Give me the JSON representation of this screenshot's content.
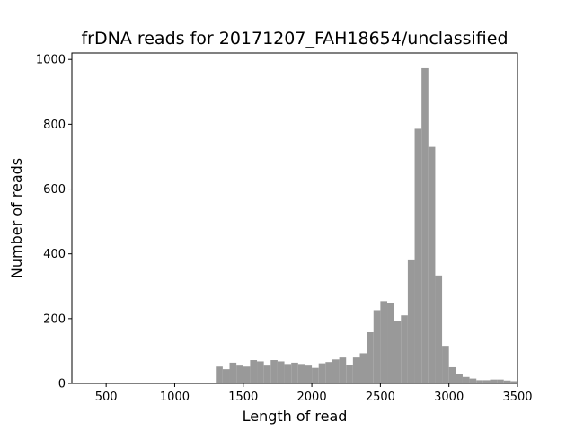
{
  "colors": {
    "bar": "#999999",
    "axis": "#000000",
    "background": "#ffffff"
  },
  "chart_data": {
    "type": "bar",
    "title": "frDNA reads for 20171207_FAH18654/unclassified",
    "xlabel": "Length of read",
    "ylabel": "Number of reads",
    "xlim": [
      250,
      3500
    ],
    "ylim": [
      0,
      1020
    ],
    "grid": false,
    "legend": "none",
    "xticks": [
      500,
      1000,
      1500,
      2000,
      2500,
      3000,
      3500
    ],
    "xtick_labels": [
      "500",
      "1000",
      "1500",
      "2000",
      "2500",
      "3000",
      "3500"
    ],
    "yticks": [
      0,
      200,
      400,
      600,
      800,
      1000
    ],
    "ytick_labels": [
      "0",
      "200",
      "400",
      "600",
      "800",
      "1000"
    ],
    "bin_width": 50,
    "bin_starts": [
      1300,
      1350,
      1400,
      1450,
      1500,
      1550,
      1600,
      1650,
      1700,
      1750,
      1800,
      1850,
      1900,
      1950,
      2000,
      2050,
      2100,
      2150,
      2200,
      2250,
      2300,
      2350,
      2400,
      2450,
      2500,
      2550,
      2600,
      2650,
      2700,
      2750,
      2800,
      2850,
      2900,
      2950,
      3000,
      3050,
      3100,
      3150,
      3200,
      3250,
      3300,
      3350,
      3400,
      3450
    ],
    "values": [
      52,
      44,
      64,
      55,
      52,
      72,
      68,
      55,
      72,
      68,
      60,
      64,
      60,
      55,
      48,
      62,
      66,
      74,
      80,
      58,
      80,
      93,
      158,
      226,
      254,
      248,
      193,
      210,
      380,
      786,
      973,
      730,
      333,
      116,
      50,
      28,
      20,
      15,
      10,
      10,
      12,
      12,
      9,
      7
    ]
  }
}
